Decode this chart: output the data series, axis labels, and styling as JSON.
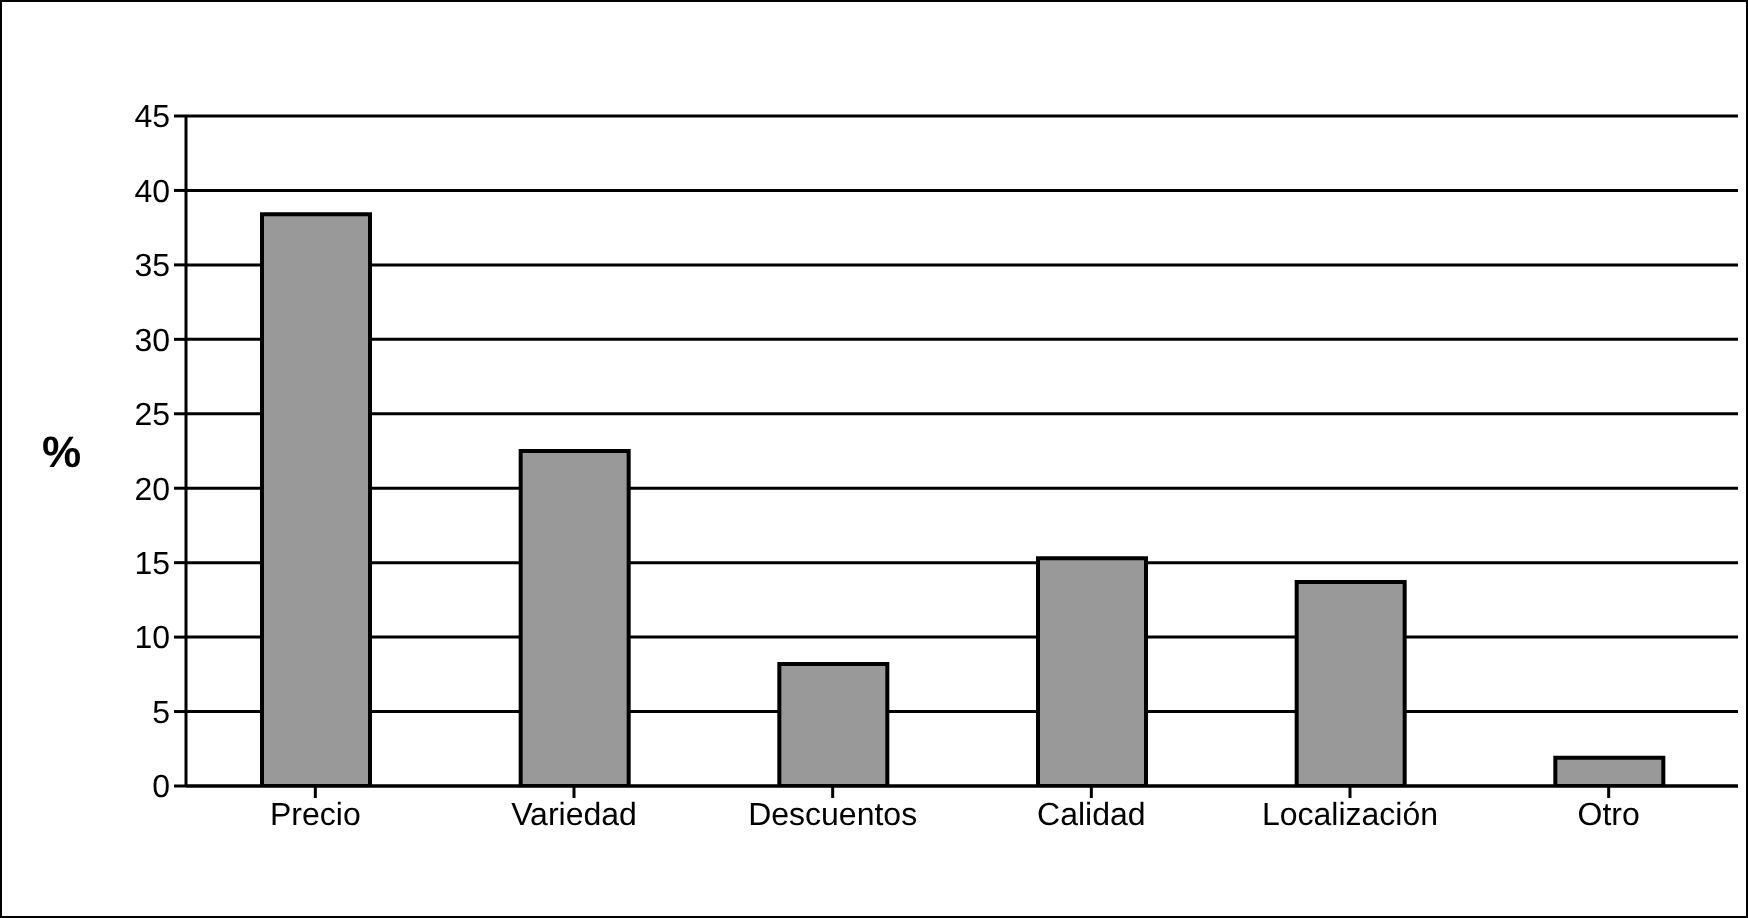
{
  "chart_data": {
    "type": "bar",
    "ylabel": "%",
    "categories": [
      "Precio",
      "Variedad",
      "Descuentos",
      "Calidad",
      "Localización",
      "Otro"
    ],
    "values": [
      38.4,
      22.5,
      8.2,
      15.3,
      13.7,
      1.9
    ],
    "color": "#999999",
    "ylim": [
      0,
      45
    ],
    "yticks": [
      0,
      5,
      10,
      15,
      20,
      25,
      30,
      35,
      40,
      45
    ],
    "grid": "y",
    "legend": false
  }
}
